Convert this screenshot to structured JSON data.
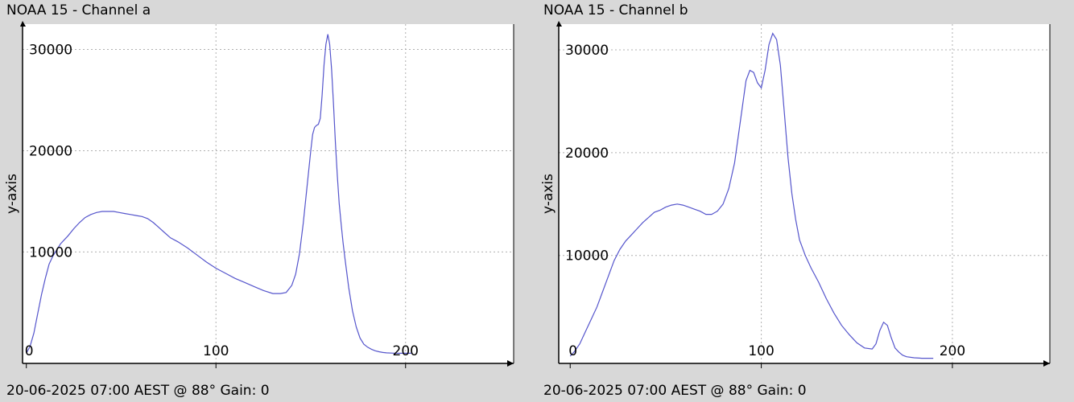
{
  "chart_data": [
    {
      "type": "line",
      "title": "NOAA 15 - Channel a",
      "ylabel": "y-axis",
      "xlabel": "",
      "footer": "20-06-2025 07:00 AEST @ 88° Gain: 0\u0002",
      "xlim": [
        -2,
        257
      ],
      "ylim": [
        -1000,
        32500
      ],
      "grid": true,
      "xticks": [
        0,
        100,
        200
      ],
      "yticks": [
        10000,
        20000,
        30000
      ],
      "line_color": "#5555cc",
      "series": [
        {
          "x": [
            0,
            2,
            4,
            6,
            8,
            10,
            12,
            14,
            16,
            18,
            20,
            22,
            25,
            28,
            31,
            34,
            37,
            40,
            43,
            46,
            49,
            52,
            55,
            58,
            61,
            64,
            67,
            70,
            73,
            76,
            80,
            85,
            90,
            95,
            100,
            105,
            110,
            115,
            120,
            125,
            130,
            134,
            137,
            140,
            142,
            144,
            146,
            148,
            150,
            151,
            152,
            153,
            154,
            155,
            156,
            157,
            158,
            159,
            160,
            161,
            162,
            163,
            164,
            165,
            166,
            167,
            168,
            170,
            172,
            174,
            176,
            178,
            180,
            182,
            184,
            186,
            188,
            190,
            194,
            198,
            200,
            203
          ],
          "y": [
            0,
            700,
            2000,
            3900,
            5800,
            7400,
            8800,
            9600,
            10200,
            10800,
            11200,
            11600,
            12300,
            12900,
            13400,
            13700,
            13900,
            14000,
            14000,
            14000,
            13900,
            13800,
            13700,
            13600,
            13500,
            13300,
            12900,
            12400,
            11900,
            11400,
            11000,
            10400,
            9700,
            9000,
            8400,
            7900,
            7400,
            7000,
            6600,
            6200,
            5900,
            5900,
            6000,
            6700,
            7800,
            9800,
            12800,
            16400,
            20000,
            21600,
            22300,
            22500,
            22600,
            23200,
            25500,
            28500,
            30500,
            31500,
            30500,
            28000,
            24500,
            20800,
            17500,
            14800,
            12800,
            11000,
            9400,
            6500,
            4200,
            2600,
            1500,
            900,
            600,
            400,
            250,
            150,
            80,
            40,
            10,
            0,
            0,
            0
          ]
        }
      ]
    },
    {
      "type": "line",
      "title": "NOAA 15 - Channel b",
      "ylabel": "y-axis",
      "xlabel": "",
      "footer": "20-06-2025 07:00 AEST @ 88° Gain: 0\u0002",
      "xlim": [
        -6,
        251
      ],
      "ylim": [
        -500,
        32500
      ],
      "grid": true,
      "xticks": [
        0,
        100,
        200
      ],
      "yticks": [
        10000,
        20000,
        30000
      ],
      "line_color": "#5555cc",
      "series": [
        {
          "x": [
            0,
            2,
            5,
            8,
            11,
            14,
            17,
            20,
            23,
            26,
            29,
            32,
            35,
            38,
            41,
            44,
            47,
            50,
            53,
            56,
            59,
            62,
            65,
            68,
            71,
            74,
            77,
            80,
            83,
            86,
            89,
            92,
            94,
            96,
            98,
            100,
            102,
            104,
            106,
            108,
            110,
            112,
            114,
            116,
            118,
            120,
            123,
            126,
            130,
            134,
            138,
            142,
            146,
            150,
            154,
            158,
            160,
            162,
            164,
            166,
            168,
            170,
            172,
            174,
            176,
            180,
            184,
            190
          ],
          "y": [
            200,
            600,
            1400,
            2600,
            3800,
            5000,
            6500,
            8000,
            9500,
            10600,
            11400,
            12000,
            12600,
            13200,
            13700,
            14200,
            14400,
            14700,
            14900,
            15000,
            14900,
            14700,
            14500,
            14300,
            14000,
            14000,
            14300,
            15000,
            16500,
            19000,
            23000,
            27000,
            28000,
            27800,
            26800,
            26300,
            28000,
            30500,
            31600,
            31000,
            28500,
            24000,
            19500,
            16000,
            13500,
            11500,
            10000,
            8800,
            7400,
            5800,
            4400,
            3200,
            2300,
            1500,
            1000,
            900,
            1400,
            2700,
            3500,
            3200,
            2000,
            1000,
            600,
            300,
            150,
            50,
            0,
            0
          ]
        }
      ]
    }
  ]
}
